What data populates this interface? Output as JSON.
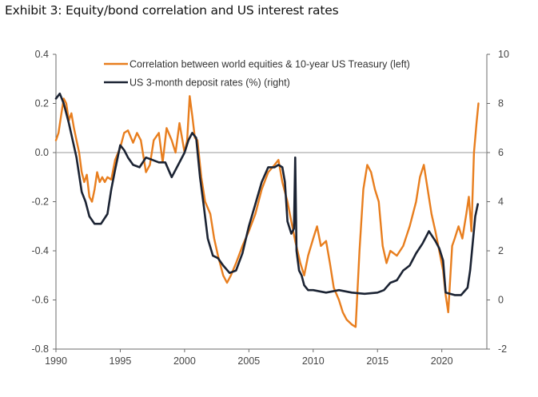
{
  "title": "Exhibit 3: Equity/bond correlation and US interest rates",
  "colors": {
    "correlation": "#E87E1E",
    "rates": "#1B2333",
    "axis": "#6b6b6b",
    "zero_line": "#9a9a9a"
  },
  "chart_data": {
    "type": "line",
    "title": "Exhibit 3: Equity/bond correlation and US interest rates",
    "x_ticks": [
      "1990",
      "1995",
      "2000",
      "2005",
      "2010",
      "2015",
      "2020"
    ],
    "xlim": [
      1990,
      2023.5
    ],
    "ylim_left": [
      -0.8,
      0.4
    ],
    "ylim_right": [
      -2,
      10
    ],
    "left_ticks": [
      "0.4",
      "0.2",
      "0.0",
      "-0.2",
      "-0.4",
      "-0.6",
      "-0.8"
    ],
    "right_ticks": [
      "10",
      "8",
      "6",
      "4",
      "2",
      "0",
      "-2"
    ],
    "legend_placement": "top-center",
    "series": [
      {
        "name": "Correlation between world equities & 10-year US Treasury (left)",
        "axis": "left",
        "x": [
          1990.0,
          1990.2,
          1990.4,
          1990.6,
          1990.8,
          1991.0,
          1991.2,
          1991.4,
          1991.6,
          1991.8,
          1992.0,
          1992.2,
          1992.4,
          1992.6,
          1992.8,
          1993.0,
          1993.2,
          1993.4,
          1993.6,
          1993.8,
          1994.0,
          1994.3,
          1994.6,
          1995.0,
          1995.3,
          1995.6,
          1996.0,
          1996.3,
          1996.6,
          1997.0,
          1997.3,
          1997.6,
          1998.0,
          1998.3,
          1998.6,
          1999.0,
          1999.3,
          1999.6,
          2000.0,
          2000.2,
          2000.4,
          2000.6,
          2000.8,
          2001.0,
          2001.3,
          2001.6,
          2002.0,
          2002.3,
          2002.6,
          2003.0,
          2003.3,
          2003.6,
          2004.0,
          2004.5,
          2005.0,
          2005.5,
          2006.0,
          2006.5,
          2007.0,
          2007.3,
          2007.6,
          2008.0,
          2008.3,
          2008.6,
          2009.0,
          2009.3,
          2009.6,
          2010.0,
          2010.3,
          2010.6,
          2011.0,
          2011.3,
          2011.6,
          2012.0,
          2012.3,
          2012.6,
          2013.0,
          2013.3,
          2013.6,
          2013.9,
          2014.2,
          2014.5,
          2014.8,
          2015.1,
          2015.4,
          2015.7,
          2016.0,
          2016.5,
          2017.0,
          2017.5,
          2018.0,
          2018.3,
          2018.6,
          2018.9,
          2019.2,
          2019.5,
          2019.8,
          2020.1,
          2020.3,
          2020.5,
          2020.8,
          2021.0,
          2021.3,
          2021.6,
          2021.9,
          2022.1,
          2022.3,
          2022.5,
          2022.7,
          2022.85
        ],
        "values": [
          0.05,
          0.08,
          0.15,
          0.22,
          0.2,
          0.13,
          0.16,
          0.1,
          0.05,
          0.0,
          -0.08,
          -0.12,
          -0.09,
          -0.18,
          -0.2,
          -0.15,
          -0.08,
          -0.12,
          -0.1,
          -0.12,
          -0.1,
          -0.11,
          -0.03,
          0.02,
          0.08,
          0.09,
          0.04,
          0.08,
          0.05,
          -0.08,
          -0.05,
          0.05,
          0.08,
          -0.04,
          0.1,
          0.05,
          0.0,
          0.12,
          0.0,
          0.05,
          0.23,
          0.15,
          0.06,
          0.05,
          -0.1,
          -0.2,
          -0.25,
          -0.35,
          -0.42,
          -0.5,
          -0.53,
          -0.5,
          -0.45,
          -0.38,
          -0.32,
          -0.25,
          -0.15,
          -0.08,
          -0.05,
          -0.03,
          -0.12,
          -0.2,
          -0.28,
          -0.36,
          -0.45,
          -0.5,
          -0.42,
          -0.35,
          -0.3,
          -0.38,
          -0.36,
          -0.45,
          -0.55,
          -0.6,
          -0.65,
          -0.68,
          -0.7,
          -0.71,
          -0.4,
          -0.15,
          -0.05,
          -0.08,
          -0.15,
          -0.2,
          -0.38,
          -0.45,
          -0.4,
          -0.42,
          -0.38,
          -0.3,
          -0.2,
          -0.1,
          -0.05,
          -0.15,
          -0.25,
          -0.32,
          -0.4,
          -0.48,
          -0.58,
          -0.65,
          -0.38,
          -0.35,
          -0.3,
          -0.35,
          -0.25,
          -0.18,
          -0.32,
          0.0,
          0.12,
          0.2
        ]
      },
      {
        "name": "US 3-month deposit rates (%) (right)",
        "axis": "right",
        "x": [
          1990.0,
          1990.3,
          1990.6,
          1991.0,
          1991.3,
          1991.6,
          1992.0,
          1992.3,
          1992.6,
          1993.0,
          1993.5,
          1994.0,
          1994.3,
          1994.6,
          1995.0,
          1995.3,
          1995.6,
          1996.0,
          1996.5,
          1997.0,
          1997.5,
          1998.0,
          1998.5,
          1999.0,
          1999.5,
          2000.0,
          2000.3,
          2000.6,
          2000.9,
          2001.2,
          2001.5,
          2001.8,
          2002.2,
          2002.6,
          2003.0,
          2003.5,
          2004.0,
          2004.5,
          2005.0,
          2005.5,
          2006.0,
          2006.5,
          2007.0,
          2007.3,
          2007.6,
          2007.8,
          2008.0,
          2008.3,
          2008.5,
          2008.6,
          2008.7,
          2008.8,
          2008.9,
          2009.1,
          2009.3,
          2009.6,
          2010.0,
          2011.0,
          2012.0,
          2013.0,
          2014.0,
          2015.0,
          2015.5,
          2016.0,
          2016.5,
          2017.0,
          2017.5,
          2018.0,
          2018.5,
          2019.0,
          2019.5,
          2019.8,
          2020.1,
          2020.3,
          2021.0,
          2021.5,
          2022.0,
          2022.2,
          2022.4,
          2022.6,
          2022.8
        ],
        "values": [
          8.2,
          8.4,
          8.0,
          7.2,
          6.5,
          5.8,
          4.4,
          4.0,
          3.4,
          3.1,
          3.1,
          3.5,
          4.5,
          5.3,
          6.3,
          6.1,
          5.8,
          5.5,
          5.4,
          5.8,
          5.7,
          5.6,
          5.6,
          5.0,
          5.5,
          6.0,
          6.5,
          6.8,
          6.6,
          5.0,
          3.8,
          2.5,
          1.8,
          1.7,
          1.4,
          1.1,
          1.2,
          1.9,
          3.0,
          3.9,
          4.8,
          5.4,
          5.4,
          5.5,
          5.4,
          4.8,
          3.2,
          2.7,
          2.9,
          5.8,
          2.0,
          1.6,
          1.2,
          1.0,
          0.6,
          0.4,
          0.4,
          0.3,
          0.4,
          0.3,
          0.25,
          0.3,
          0.4,
          0.7,
          0.8,
          1.2,
          1.4,
          1.9,
          2.3,
          2.8,
          2.4,
          2.1,
          1.6,
          0.3,
          0.2,
          0.2,
          0.5,
          1.2,
          2.3,
          3.4,
          3.9
        ]
      }
    ]
  }
}
